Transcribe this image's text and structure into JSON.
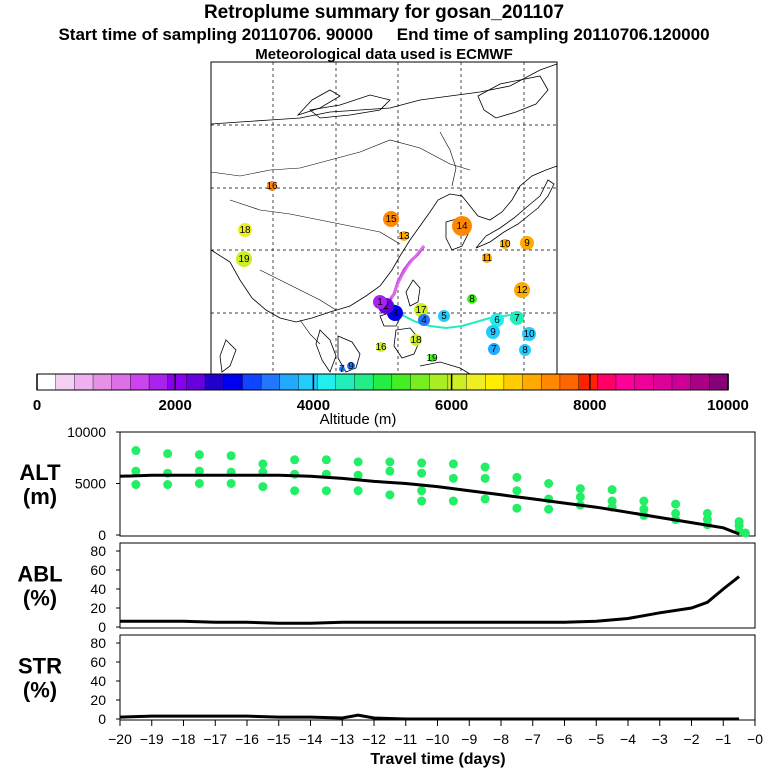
{
  "header": {
    "title": "Retroplume summary for gosan_201107",
    "start_label": "Start time of sampling 20110706. 90000",
    "end_label": "End time of sampling 20110706.120000",
    "met_label": "Meteorological data used is ECMWF"
  },
  "colorbar": {
    "label": "Altitude (m)",
    "ticks": [
      "0",
      "2000",
      "4000",
      "6000",
      "8000",
      "10000"
    ],
    "range": [
      0,
      10000
    ],
    "colors": [
      "#ffffff",
      "#f5d0f5",
      "#eeb0ee",
      "#e690e6",
      "#dd70e6",
      "#cc44ee",
      "#aa22ee",
      "#8800ee",
      "#6600dd",
      "#2200cc",
      "#0000ee",
      "#1144ff",
      "#2277ff",
      "#22aaff",
      "#22ccff",
      "#22eeee",
      "#22eebb",
      "#22ee88",
      "#22ee44",
      "#44ee22",
      "#77ee22",
      "#aaee22",
      "#ccee22",
      "#eeee22",
      "#ffee00",
      "#ffcc00",
      "#ffaa00",
      "#ff8800",
      "#ff6600",
      "#ff2200",
      "#ff0066",
      "#ff0099",
      "#ee0099",
      "#dd0099",
      "#cc0099",
      "#aa0088",
      "#880077"
    ]
  },
  "map_markers": [
    {
      "label": "16",
      "color": "#ff8800"
    },
    {
      "label": "15",
      "color": "#ff8800"
    },
    {
      "label": "18",
      "color": "#eeee22"
    },
    {
      "label": "13",
      "color": "#ffaa00"
    },
    {
      "label": "19",
      "color": "#ccee22"
    },
    {
      "label": "14",
      "color": "#ff8800"
    },
    {
      "label": "10",
      "color": "#ffaa00"
    },
    {
      "label": "9",
      "color": "#ffaa00"
    },
    {
      "label": "11",
      "color": "#ffaa00"
    },
    {
      "label": "12",
      "color": "#ffaa00"
    },
    {
      "label": "17",
      "color": "#ccee22"
    },
    {
      "label": "8",
      "color": "#44ee22"
    },
    {
      "label": "7",
      "color": "#22eebb"
    },
    {
      "label": "6",
      "color": "#22eeee"
    },
    {
      "label": "5",
      "color": "#22ccff"
    },
    {
      "label": "4",
      "color": "#2277ff"
    },
    {
      "label": "3",
      "color": "#0000ee"
    },
    {
      "label": "2",
      "color": "#6600dd"
    },
    {
      "label": "1",
      "color": "#aa22ee"
    },
    {
      "label": "9",
      "color": "#22ccff"
    },
    {
      "label": "10",
      "color": "#22ccff"
    },
    {
      "label": "8",
      "color": "#22ccff"
    },
    {
      "label": "7",
      "color": "#22aaff"
    },
    {
      "label": "16",
      "color": "#ccee22"
    },
    {
      "label": "18",
      "color": "#ccee22"
    },
    {
      "label": "19",
      "color": "#44ee22"
    },
    {
      "label": "8",
      "color": "#22aaff"
    },
    {
      "label": "9",
      "color": "#2277ff"
    },
    {
      "label": "7",
      "color": "#2277ff"
    }
  ],
  "chart_data": [
    {
      "type": "scatter",
      "name": "ALT",
      "ylabel": "ALT\n(m)",
      "ylim": [
        0,
        10000
      ],
      "ytick_labels": [
        "10000",
        "5000",
        "0"
      ],
      "x": [
        -20,
        -19,
        -18,
        -17,
        -16,
        -15,
        -14,
        -13,
        -12,
        -11,
        -10,
        -9,
        -8,
        -7,
        -6,
        -5,
        -4,
        -3,
        -2,
        -1,
        -0.5
      ],
      "line_values": [
        5700,
        5800,
        5800,
        5800,
        5800,
        5800,
        5700,
        5500,
        5200,
        5000,
        4700,
        4300,
        3900,
        3500,
        3100,
        2700,
        2200,
        1700,
        1200,
        700,
        100
      ],
      "scatter": [
        [
          -19.5,
          8200
        ],
        [
          -19.5,
          6200
        ],
        [
          -19.5,
          4900
        ],
        [
          -18.5,
          7900
        ],
        [
          -18.5,
          6000
        ],
        [
          -18.5,
          4900
        ],
        [
          -17.5,
          7800
        ],
        [
          -17.5,
          6200
        ],
        [
          -17.5,
          5000
        ],
        [
          -16.5,
          7700
        ],
        [
          -16.5,
          6100
        ],
        [
          -16.5,
          5000
        ],
        [
          -15.5,
          6900
        ],
        [
          -15.5,
          6100
        ],
        [
          -15.5,
          4700
        ],
        [
          -14.5,
          7300
        ],
        [
          -14.5,
          5900
        ],
        [
          -14.5,
          4300
        ],
        [
          -13.5,
          7300
        ],
        [
          -13.5,
          5900
        ],
        [
          -13.5,
          4300
        ],
        [
          -12.5,
          7100
        ],
        [
          -12.5,
          5800
        ],
        [
          -12.5,
          4300
        ],
        [
          -11.5,
          7100
        ],
        [
          -11.5,
          6200
        ],
        [
          -11.5,
          3900
        ],
        [
          -10.5,
          7000
        ],
        [
          -10.5,
          6000
        ],
        [
          -10.5,
          4300
        ],
        [
          -10.5,
          3300
        ],
        [
          -9.5,
          6900
        ],
        [
          -9.5,
          5500
        ],
        [
          -9.5,
          3300
        ],
        [
          -8.5,
          6600
        ],
        [
          -8.5,
          5500
        ],
        [
          -8.5,
          3500
        ],
        [
          -7.5,
          5600
        ],
        [
          -7.5,
          4300
        ],
        [
          -7.5,
          2600
        ],
        [
          -6.5,
          5000
        ],
        [
          -6.5,
          3500
        ],
        [
          -6.5,
          2500
        ],
        [
          -5.5,
          4500
        ],
        [
          -5.5,
          3700
        ],
        [
          -5.5,
          2900
        ],
        [
          -4.5,
          4400
        ],
        [
          -4.5,
          3300
        ],
        [
          -4.5,
          2700
        ],
        [
          -3.5,
          3300
        ],
        [
          -3.5,
          2500
        ],
        [
          -3.5,
          1900
        ],
        [
          -2.5,
          3000
        ],
        [
          -2.5,
          2100
        ],
        [
          -2.5,
          1500
        ],
        [
          -1.5,
          2100
        ],
        [
          -1.5,
          1500
        ],
        [
          -1.5,
          1000
        ],
        [
          -0.5,
          1300
        ],
        [
          -0.5,
          900
        ],
        [
          -0.5,
          400
        ],
        [
          -0.3,
          200
        ]
      ]
    },
    {
      "type": "line",
      "name": "ABL",
      "ylabel": "ABL\n(%)",
      "ylim": [
        0,
        80
      ],
      "ytick_labels": [
        "80",
        "60",
        "40",
        "20",
        "0"
      ],
      "x": [
        -20,
        -19,
        -18,
        -17,
        -16,
        -15,
        -14,
        -13,
        -12,
        -11,
        -10,
        -9,
        -8,
        -7,
        -6,
        -5,
        -4,
        -3,
        -2,
        -1.5,
        -1,
        -0.5
      ],
      "values": [
        6,
        6,
        6,
        5,
        5,
        4,
        4,
        5,
        5,
        5,
        5,
        5,
        5,
        5,
        5,
        6,
        9,
        15,
        20,
        26,
        40,
        53
      ]
    },
    {
      "type": "line",
      "name": "STR",
      "ylabel": "STR\n(%)",
      "ylim": [
        0,
        80
      ],
      "ytick_labels": [
        "80",
        "60",
        "40",
        "20",
        "0"
      ],
      "x": [
        -20,
        -19,
        -18,
        -17,
        -16,
        -15,
        -14,
        -13,
        -12.5,
        -12,
        -11,
        -10,
        -9,
        -8,
        -7,
        -6,
        -5,
        -4,
        -3,
        -2,
        -1,
        -0.5
      ],
      "values": [
        2,
        3,
        3,
        3,
        3,
        2,
        2,
        1,
        4,
        1,
        0,
        0,
        0,
        0,
        0,
        0,
        0,
        0,
        0,
        0,
        0,
        0
      ]
    }
  ],
  "x_axis": {
    "label": "Travel time (days)",
    "ticks": [
      "−20",
      "−19",
      "−18",
      "−17",
      "−16",
      "−15",
      "−14",
      "−13",
      "−12",
      "−11",
      "−10",
      "−9",
      "−8",
      "−7",
      "−6",
      "−5",
      "−4",
      "−3",
      "−2",
      "−1",
      "−0"
    ]
  }
}
